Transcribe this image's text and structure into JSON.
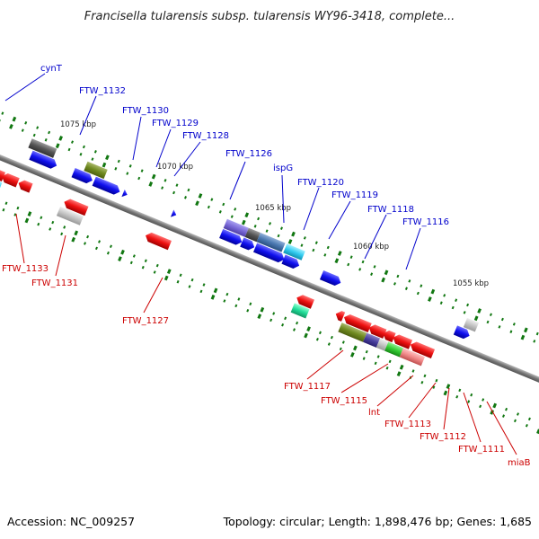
{
  "title": "Francisella tularensis subsp. tularensis WY96-3418, complete...",
  "footer": {
    "accession": "Accession: NC_009257",
    "summary": "Topology: circular; Length: 1,898,476 bp; Genes: 1,685"
  },
  "ticks": [
    "1075 kbp",
    "1070 kbp",
    "1065 kbp",
    "1060 kbp",
    "1055 kbp"
  ],
  "top_labels": [
    "cynT",
    "FTW_1132",
    "FTW_1130",
    "FTW_1129",
    "FTW_1128",
    "FTW_1126",
    "ispG",
    "FTW_1120",
    "FTW_1119",
    "FTW_1118",
    "FTW_1116"
  ],
  "bottom_labels": [
    "FTW_1133",
    "FTW_1131",
    "FTW_1127",
    "FTW_1117",
    "FTW_1115",
    "lnt",
    "FTW_1113",
    "FTW_1112",
    "FTW_1111",
    "miaB"
  ],
  "colors": {
    "blue_label": "#0000cc",
    "red_label": "#cc0000",
    "gene_blue": "#1010ee",
    "gene_red": "#ee1111",
    "tick_green": "#117711",
    "backbone": "#888888"
  }
}
